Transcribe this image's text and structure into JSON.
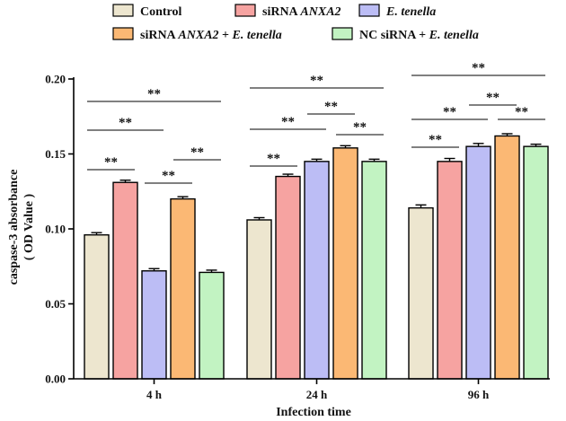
{
  "chart_data": {
    "type": "bar",
    "categories": [
      "4 h",
      "24 h",
      "96 h"
    ],
    "series": [
      {
        "name": "Control",
        "color": "#ede6cf",
        "values": [
          0.096,
          0.106,
          0.114
        ],
        "errors": [
          0.0015,
          0.0015,
          0.002
        ]
      },
      {
        "name": "siRNA ",
        "name_italic": "ANXA2",
        "color": "#f6a3a1",
        "values": [
          0.131,
          0.135,
          0.145
        ],
        "errors": [
          0.0015,
          0.0015,
          0.002
        ]
      },
      {
        "name": "",
        "name_italic": "E. tenella",
        "color": "#bcbdf5",
        "values": [
          0.072,
          0.145,
          0.155
        ],
        "errors": [
          0.0015,
          0.0015,
          0.002
        ]
      },
      {
        "name": "siRNA ",
        "name_italic": "ANXA2",
        "name_suffix": " + ",
        "name_italic2": "E. tenella",
        "color": "#fbb874",
        "values": [
          0.12,
          0.154,
          0.162
        ],
        "errors": [
          0.0015,
          0.0015,
          0.0015
        ]
      },
      {
        "name": "NC siRNA + ",
        "name_italic": "E. tenella",
        "color": "#c2f3c2",
        "values": [
          0.071,
          0.145,
          0.155
        ],
        "errors": [
          0.0015,
          0.0015,
          0.0015
        ]
      }
    ],
    "xlabel": "Infection time",
    "ylabel": "caspase-3 absorbance",
    "ylabel2": "( OD Value )",
    "ylim": [
      0,
      0.2
    ],
    "yticks": [
      "0.00",
      "0.05",
      "0.10",
      "0.15",
      "0.20"
    ],
    "significance": [
      {
        "group": 0,
        "from": 0,
        "to": 1,
        "level": 0,
        "label": "**"
      },
      {
        "group": 0,
        "from": 2,
        "to": 3,
        "level": 0,
        "label": "**"
      },
      {
        "group": 0,
        "from": 3,
        "to": 4,
        "level": 1,
        "label": "**"
      },
      {
        "group": 0,
        "from": 0,
        "to": 2,
        "level": 2,
        "label": "**"
      },
      {
        "group": 0,
        "from": 0,
        "to": 4,
        "level": 3,
        "label": "**"
      },
      {
        "group": 1,
        "from": 0,
        "to": 1,
        "level": 0,
        "label": "**"
      },
      {
        "group": 1,
        "from": 0,
        "to": 2,
        "level": 1,
        "label": "**"
      },
      {
        "group": 1,
        "from": 2,
        "to": 3,
        "level": 2,
        "label": "**"
      },
      {
        "group": 1,
        "from": 3,
        "to": 4,
        "level": 1,
        "label": "**"
      },
      {
        "group": 1,
        "from": 0,
        "to": 4,
        "level": 3,
        "label": "**"
      },
      {
        "group": 2,
        "from": 0,
        "to": 1,
        "level": 0,
        "label": "**"
      },
      {
        "group": 2,
        "from": 0,
        "to": 2,
        "level": 1,
        "label": "**"
      },
      {
        "group": 2,
        "from": 2,
        "to": 3,
        "level": 2,
        "label": "**"
      },
      {
        "group": 2,
        "from": 3,
        "to": 4,
        "level": 1,
        "label": "**"
      },
      {
        "group": 2,
        "from": 0,
        "to": 4,
        "level": 3,
        "label": "**"
      }
    ]
  }
}
